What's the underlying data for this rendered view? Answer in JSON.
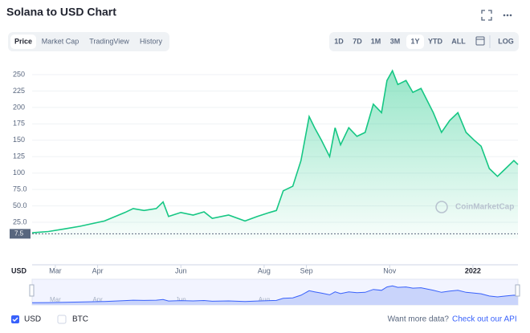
{
  "header": {
    "title": "Solana to USD Chart"
  },
  "tabs": [
    "Price",
    "Market Cap",
    "TradingView",
    "History"
  ],
  "ranges": [
    "1D",
    "7D",
    "1M",
    "3M",
    "1Y",
    "YTD",
    "ALL",
    "LOG"
  ],
  "chart_data": {
    "type": "area",
    "color": "#16c784",
    "grid": true,
    "x": [
      0,
      12,
      24,
      35,
      53,
      68,
      74,
      82,
      91,
      96,
      100,
      109,
      118,
      126,
      132,
      144,
      156,
      165,
      174,
      179,
      184,
      191,
      197,
      203,
      207,
      212,
      218,
      222,
      226,
      232,
      238,
      244,
      250,
      256,
      260,
      264,
      268,
      274,
      279,
      285,
      294,
      300,
      306,
      312,
      318,
      324,
      329,
      335,
      341,
      347,
      353,
      356
    ],
    "values": [
      9,
      11,
      15,
      19,
      27,
      40,
      46,
      43,
      46,
      56,
      34,
      40,
      36,
      41,
      31,
      36,
      27,
      34,
      40,
      43,
      73,
      80,
      119,
      186,
      169,
      150,
      125,
      169,
      143,
      169,
      156,
      162,
      205,
      192,
      241,
      256,
      235,
      241,
      223,
      229,
      192,
      162,
      180,
      192,
      162,
      150,
      141,
      107,
      95,
      107,
      119,
      113
    ],
    "xlim": [
      0,
      356
    ],
    "xticks": [
      {
        "value": 17,
        "label": "Mar"
      },
      {
        "value": 48,
        "label": "Apr"
      },
      {
        "value": 109,
        "label": "Jun"
      },
      {
        "value": 170,
        "label": "Aug"
      },
      {
        "value": 201,
        "label": "Sep"
      },
      {
        "value": 262,
        "label": "Nov"
      },
      {
        "value": 323,
        "label": "2022"
      }
    ],
    "ylim": [
      0,
      260
    ],
    "yticks": [
      {
        "value": 25,
        "label": "25.0"
      },
      {
        "value": 50,
        "label": "50.0"
      },
      {
        "value": 75,
        "label": "75.0"
      },
      100,
      125,
      150,
      175,
      200,
      225,
      250
    ],
    "start_marker": {
      "value": 7.5,
      "label": "7.5"
    },
    "currency": "USD",
    "watermark": "CoinMarketCap"
  },
  "footer": {
    "options": [
      "USD",
      "BTC"
    ],
    "prompt": "Want more data?",
    "link": "Check out our API"
  }
}
